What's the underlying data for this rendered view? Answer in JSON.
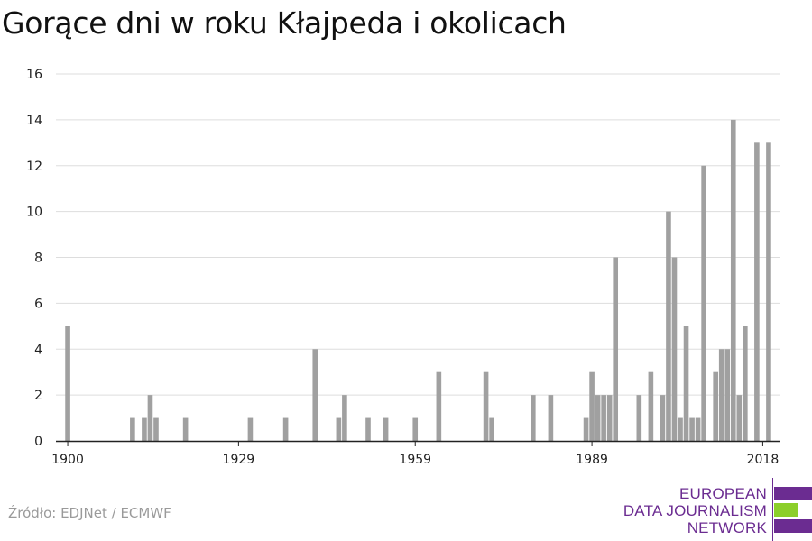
{
  "title": "Gorące dni w roku Kłajpeda i okolicach",
  "source": "Źródło: EDJNet / ECMWF",
  "logo": {
    "lines": [
      "EUROPEAN",
      "DATA JOURNALISM",
      "NETWORK"
    ],
    "colors": {
      "purple": "#6b2c91",
      "green": "#8ccf2a"
    }
  },
  "colors": {
    "bar": "#a0a0a0",
    "grid": "#dddddd",
    "axis": "#222222"
  },
  "chart_data": {
    "type": "bar",
    "title": "Gorące dni w roku Kłajpeda i okolicach",
    "xlabel": "",
    "ylabel": "",
    "ylim": [
      0,
      16
    ],
    "xlim": [
      1898,
      2021
    ],
    "yticks": [
      0,
      2,
      4,
      6,
      8,
      10,
      12,
      14,
      16
    ],
    "xticks": [
      1900,
      1929,
      1959,
      1989,
      2018
    ],
    "grid": true,
    "x": [
      1900,
      1911,
      1913,
      1914,
      1915,
      1920,
      1931,
      1937,
      1942,
      1946,
      1947,
      1951,
      1954,
      1959,
      1963,
      1971,
      1972,
      1979,
      1982,
      1988,
      1989,
      1990,
      1991,
      1992,
      1993,
      1997,
      1999,
      2001,
      2002,
      2003,
      2004,
      2005,
      2006,
      2007,
      2008,
      2010,
      2011,
      2012,
      2013,
      2014,
      2015,
      2016,
      2017,
      2019
    ],
    "values": [
      5,
      1,
      1,
      2,
      1,
      1,
      1,
      1,
      4,
      1,
      2,
      1,
      1,
      1,
      3,
      3,
      1,
      2,
      2,
      1,
      3,
      2,
      2,
      2,
      8,
      2,
      3,
      2,
      10,
      8,
      1,
      5,
      1,
      1,
      12,
      3,
      4,
      4,
      14,
      2,
      5,
      0,
      13,
      13
    ]
  }
}
